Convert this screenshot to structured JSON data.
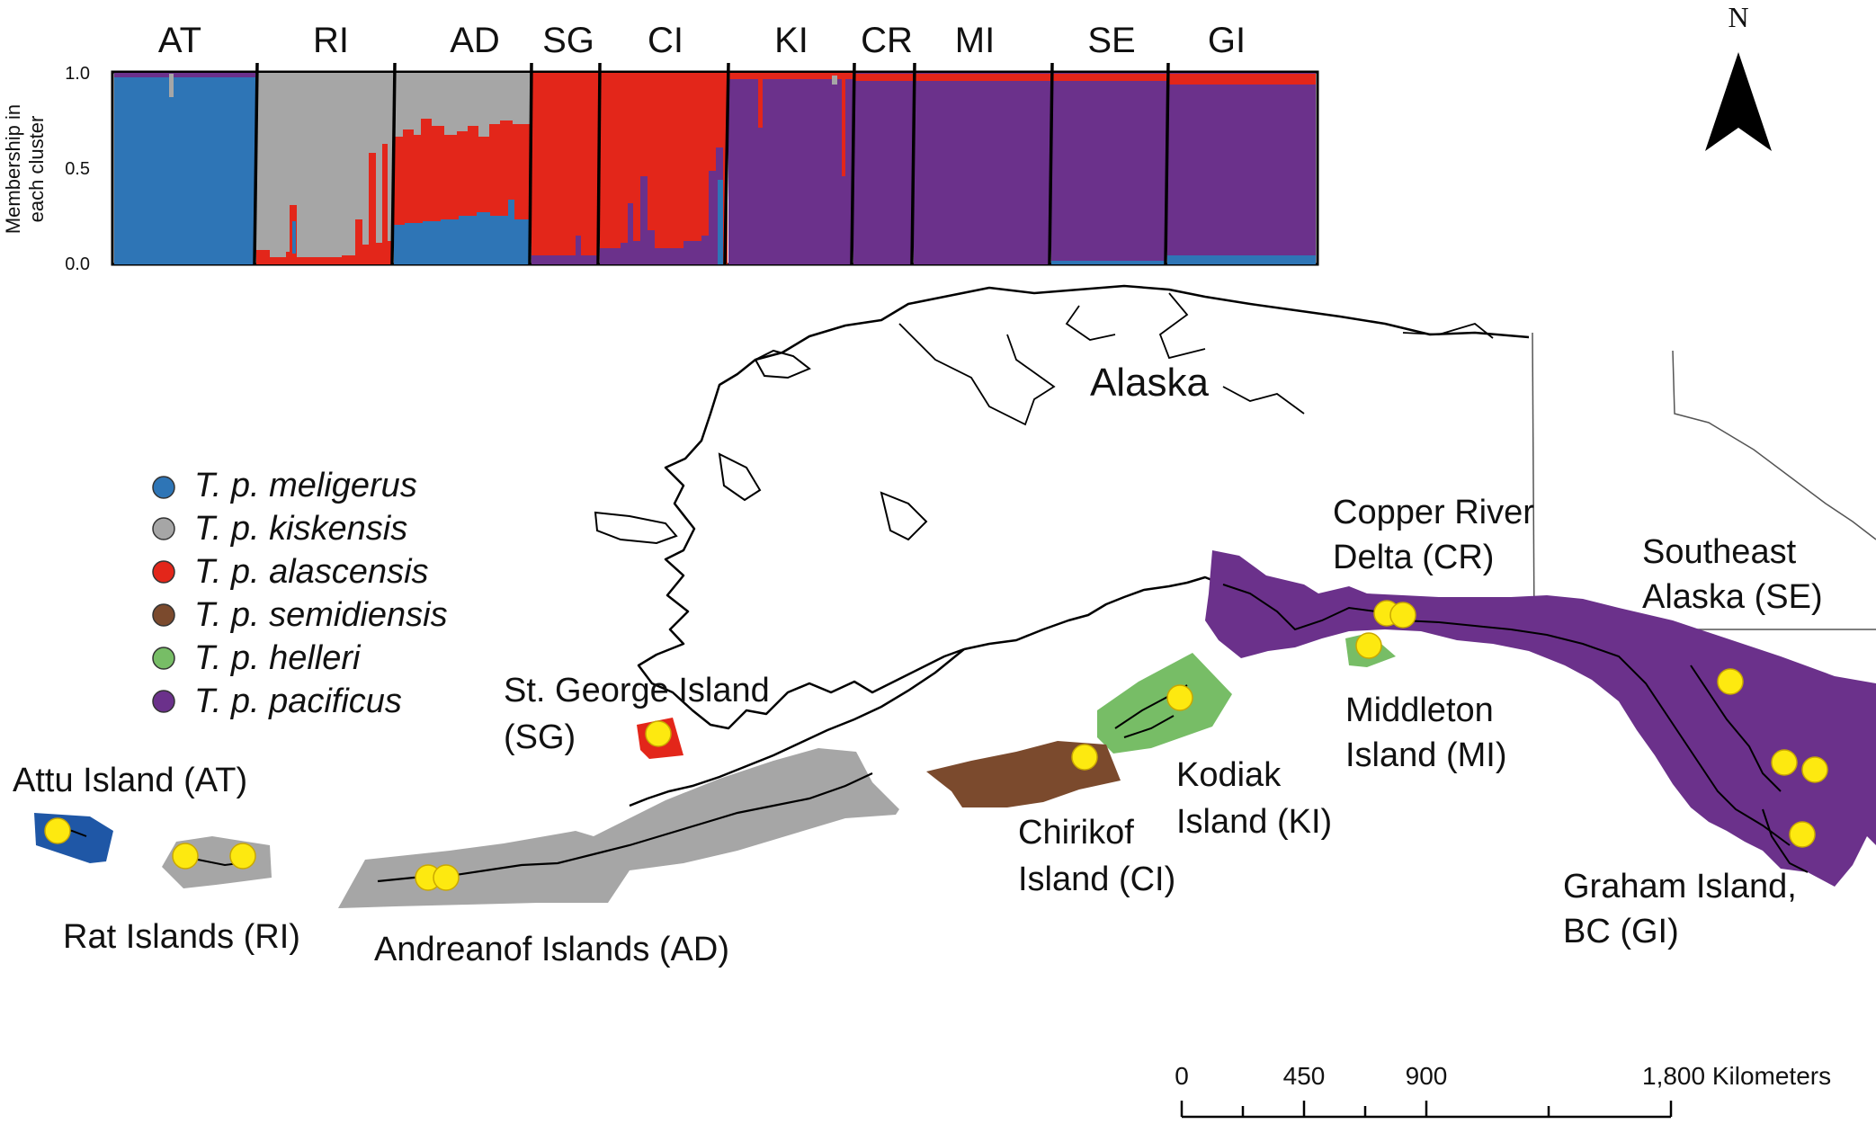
{
  "structure_plot": {
    "ylabel_line1": "Membership in",
    "ylabel_line2": "each cluster",
    "yticks": [
      "1.0",
      "0.5",
      "0.0"
    ],
    "populations": [
      "AT",
      "RI",
      "AD",
      "SG",
      "CI",
      "KI",
      "CR",
      "MI",
      "SE",
      "GI"
    ]
  },
  "legend": [
    {
      "label": "T. p. meligerus",
      "color": "#2e75b6"
    },
    {
      "label": "T. p. kiskensis",
      "color": "#a6a6a6"
    },
    {
      "label": "T. p. alascensis",
      "color": "#e3261a"
    },
    {
      "label": "T. p. semidiensis",
      "color": "#7b4a2d"
    },
    {
      "label": "T. p. helleri",
      "color": "#77bd66"
    },
    {
      "label": "T. p. pacificus",
      "color": "#6b318b"
    }
  ],
  "map": {
    "alaska": "Alaska",
    "north": "N",
    "sites": {
      "at": "Attu Island (AT)",
      "ri": "Rat Islands (RI)",
      "ad": "Andreanof Islands (AD)",
      "sg1": "St. George Island",
      "sg2": "(SG)",
      "ci1": "Chirikof",
      "ci2": "Island (CI)",
      "ki1": "Kodiak",
      "ki2": "Island (KI)",
      "cr1": "Copper River",
      "cr2": "Delta (CR)",
      "mi1": "Middleton",
      "mi2": "Island (MI)",
      "se1": "Southeast",
      "se2": "Alaska (SE)",
      "gi1": "Graham Island,",
      "gi2": "BC (GI)"
    },
    "scalebar": {
      "ticks": [
        "0",
        "450",
        "900",
        "1,800 Kilometers"
      ]
    }
  },
  "colors": {
    "meligerus": "#2e75b6",
    "kiskensis": "#a6a6a6",
    "alascensis": "#e3261a",
    "pacificus": "#6b318b",
    "helleri": "#77bd66",
    "semidiensis": "#7b4a2d",
    "sample_site": "#fde910"
  }
}
